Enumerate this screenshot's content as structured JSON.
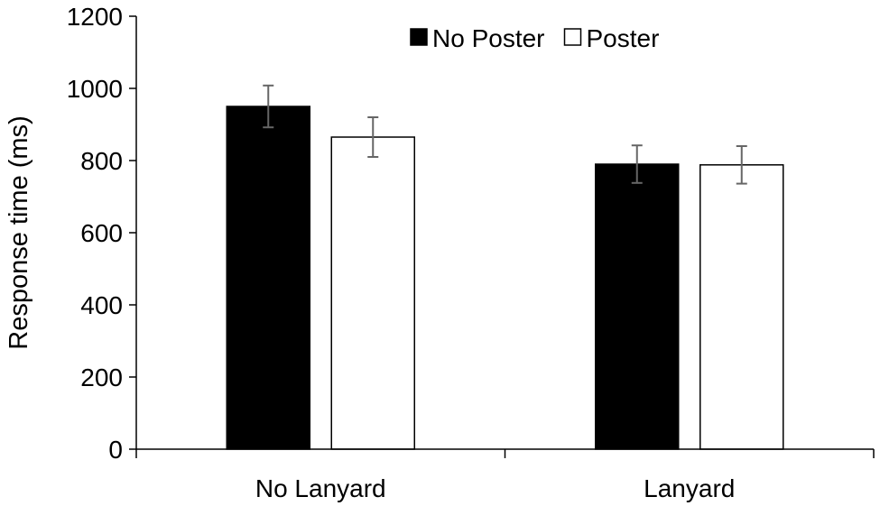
{
  "chart_data": {
    "type": "bar",
    "title": "",
    "xlabel": "",
    "ylabel": "Response time (ms)",
    "ylim": [
      0,
      1200
    ],
    "yticks": [
      0,
      200,
      400,
      600,
      800,
      1000,
      1200
    ],
    "grid": false,
    "legend_position": "top-right",
    "categories": [
      "No Lanyard",
      "Lanyard"
    ],
    "series": [
      {
        "name": "No Poster",
        "color": "#000000",
        "values": [
          950,
          790
        ],
        "errors": [
          58,
          52
        ]
      },
      {
        "name": "Poster",
        "color": "#ffffff",
        "values": [
          865,
          788
        ],
        "errors": [
          55,
          52
        ]
      }
    ]
  }
}
